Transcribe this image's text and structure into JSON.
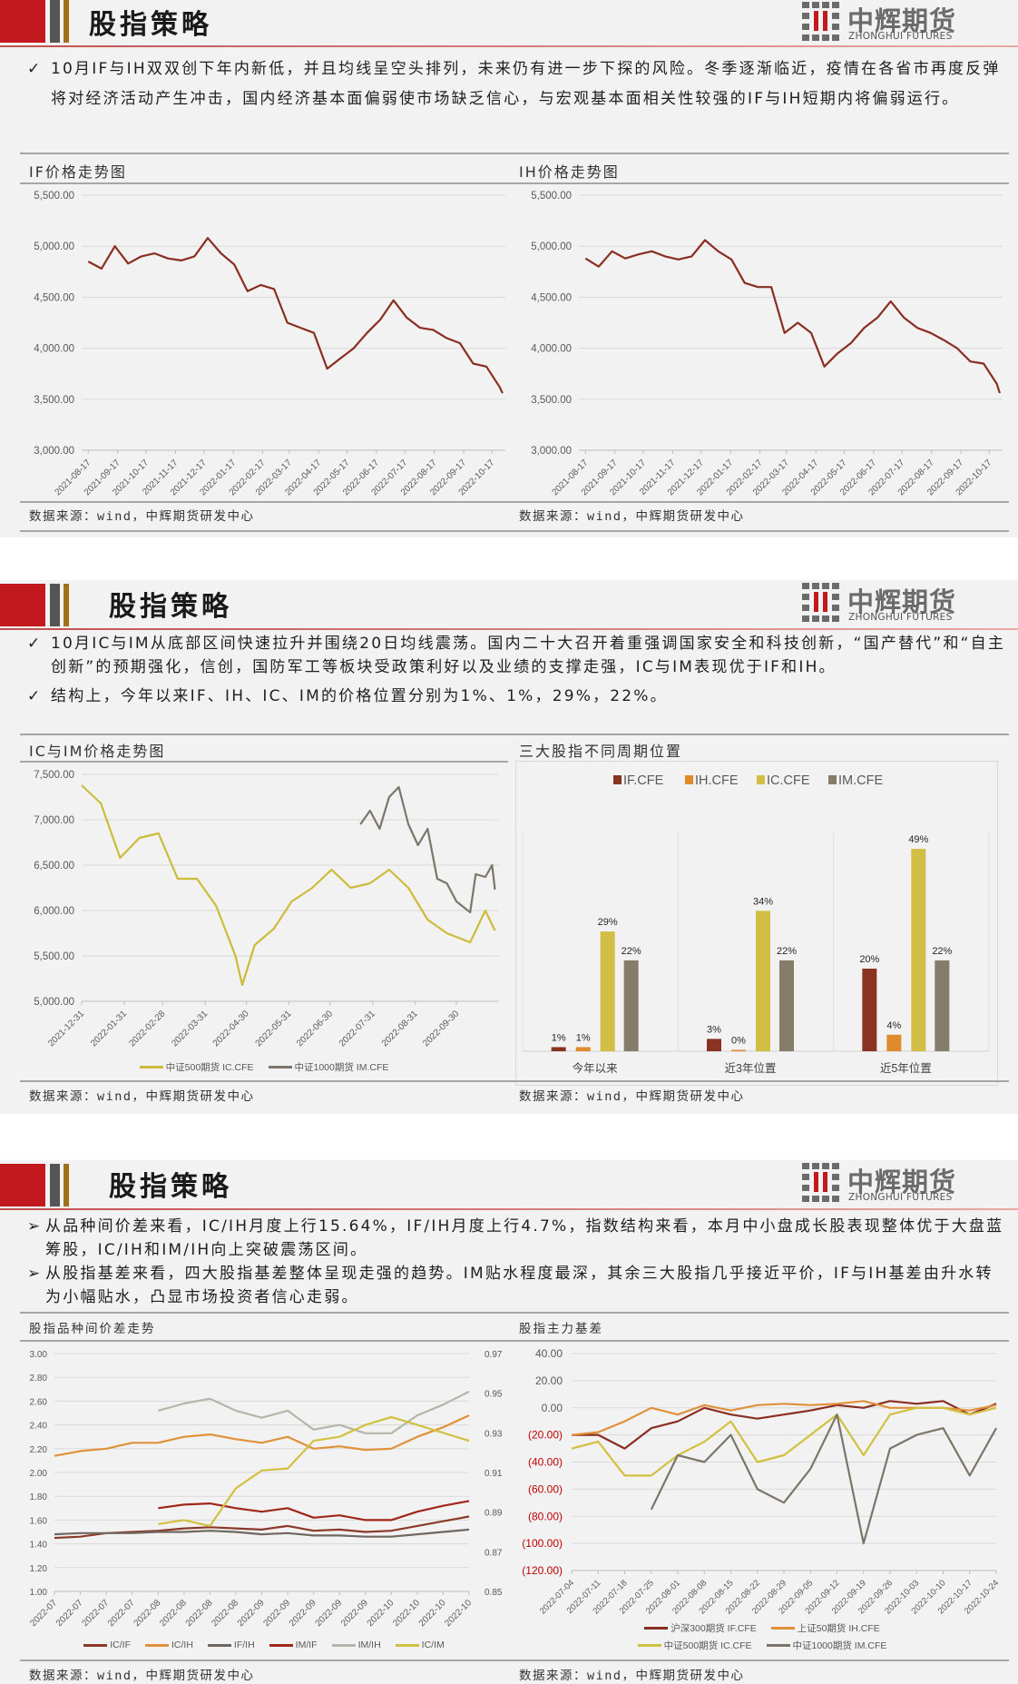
{
  "header": {
    "title": "股指策略",
    "logo": {
      "cn": "中辉期货",
      "en": "ZHONGHUI FUTURES"
    }
  },
  "colors": {
    "brand_red": "#c2191f",
    "brand_gray": "#555555",
    "brand_gold": "#a0701a"
  },
  "source_label": "数据来源：wind，中辉期货研发中心",
  "section1": {
    "bullet_icon": "check-icon",
    "bullets": [
      "10月IF与IH双双创下年内新低，并且均线呈空头排列，未来仍有进一步下探的风险。冬季逐渐临近，疫情在各省市再度反弹将对经济活动产生冲击，国内经济基本面偏弱使市场缺乏信心，与宏观基本面相关性较强的IF与IH短期内将偏弱运行。"
    ]
  },
  "section2": {
    "bullet_icon": "check-icon",
    "bullets": [
      "10月IC与IM从底部区间快速拉升并围绕20日均线震荡。国内二十大召开着重强调国家安全和科技创新，“国产替代”和“自主创新”的预期强化，信创，国防军工等板块受政策利好以及业绩的支撑走强，IC与IM表现优于IF和IH。",
      "结构上，今年以来IF、IH、IC、IM的价格位置分别为1%、1%，29%，22%。"
    ]
  },
  "section3": {
    "bullet_icon": "triangle-right-icon",
    "bullets": [
      "从品种间价差来看，IC/IH月度上行15.64%，IF/IH月度上行4.7%，指数结构来看，本月中小盘成长股表现整体优于大盘蓝筹股，IC/IH和IM/IH向上突破震荡区间。",
      "从股指基差来看，四大股指基差整体呈现走强的趋势。IM贴水程度最深，其余三大股指几乎接近平价，IF与IH基差由升水转为小幅贴水，凸显市场投资者信心走弱。"
    ]
  },
  "chart_data": [
    {
      "type": "line",
      "title": "IF价格走势图",
      "xlim": [
        "2021-08-10",
        "2022-10-31"
      ],
      "ylim": [
        3000,
        5500
      ],
      "y_ticks": [
        3000,
        3500,
        4000,
        4500,
        5000,
        5500
      ],
      "y_decimals": 2,
      "grid": true,
      "x_ticks": [
        "2021-08-17",
        "2021-09-17",
        "2021-10-17",
        "2021-11-17",
        "2021-12-17",
        "2022-01-17",
        "2022-02-17",
        "2022-03-17",
        "2022-04-17",
        "2022-05-17",
        "2022-06-17",
        "2022-07-17",
        "2022-08-17",
        "2022-09-17",
        "2022-10-17"
      ],
      "series": [
        {
          "color": "#8b2e22",
          "dates": [
            "2021-08-17",
            "2021-08-31",
            "2021-09-14",
            "2021-09-28",
            "2021-10-12",
            "2021-10-26",
            "2021-11-09",
            "2021-11-23",
            "2021-12-07",
            "2021-12-21",
            "2022-01-04",
            "2022-01-18",
            "2022-02-01",
            "2022-02-15",
            "2022-03-01",
            "2022-03-15",
            "2022-03-29",
            "2022-04-12",
            "2022-04-26",
            "2022-05-10",
            "2022-05-24",
            "2022-06-07",
            "2022-06-21",
            "2022-07-05",
            "2022-07-19",
            "2022-08-02",
            "2022-08-16",
            "2022-08-30",
            "2022-09-13",
            "2022-09-27",
            "2022-10-11",
            "2022-10-25",
            "2022-10-28"
          ],
          "values": [
            4850,
            4780,
            5000,
            4830,
            4900,
            4930,
            4880,
            4860,
            4900,
            5080,
            4930,
            4820,
            4560,
            4620,
            4580,
            4250,
            4200,
            4150,
            3800,
            3900,
            4000,
            4150,
            4280,
            4470,
            4300,
            4200,
            4180,
            4100,
            4050,
            3850,
            3820,
            3620,
            3560
          ]
        }
      ]
    },
    {
      "type": "line",
      "title": "IH价格走势图",
      "xlim": [
        "2021-08-10",
        "2022-10-31"
      ],
      "ylim": [
        3000,
        5500
      ],
      "y_ticks": [
        3000,
        3500,
        4000,
        4500,
        5000,
        5500
      ],
      "y_decimals": 2,
      "grid": true,
      "x_ticks": [
        "2021-08-17",
        "2021-09-17",
        "2021-10-17",
        "2021-11-17",
        "2021-12-17",
        "2022-01-17",
        "2022-02-17",
        "2022-03-17",
        "2022-04-17",
        "2022-05-17",
        "2022-06-17",
        "2022-07-17",
        "2022-08-17",
        "2022-09-17",
        "2022-10-17"
      ],
      "series": [
        {
          "color": "#8b2e22",
          "dates": [
            "2021-08-17",
            "2021-08-31",
            "2021-09-14",
            "2021-09-28",
            "2021-10-12",
            "2021-10-26",
            "2021-11-09",
            "2021-11-23",
            "2021-12-07",
            "2021-12-21",
            "2022-01-04",
            "2022-01-18",
            "2022-02-01",
            "2022-02-15",
            "2022-03-01",
            "2022-03-15",
            "2022-03-29",
            "2022-04-12",
            "2022-04-26",
            "2022-05-10",
            "2022-05-24",
            "2022-06-07",
            "2022-06-21",
            "2022-07-05",
            "2022-07-19",
            "2022-08-02",
            "2022-08-16",
            "2022-08-30",
            "2022-09-13",
            "2022-09-27",
            "2022-10-11",
            "2022-10-25",
            "2022-10-28"
          ],
          "values": [
            4880,
            4800,
            4950,
            4880,
            4920,
            4950,
            4900,
            4870,
            4900,
            5060,
            4950,
            4870,
            4640,
            4600,
            4600,
            4150,
            4250,
            4150,
            3820,
            3950,
            4050,
            4200,
            4300,
            4460,
            4300,
            4200,
            4150,
            4080,
            4000,
            3870,
            3850,
            3650,
            3560
          ]
        }
      ]
    },
    {
      "type": "line",
      "title": "IC与IM价格走势图",
      "xlim": [
        "2021-12-31",
        "2022-10-31"
      ],
      "ylim": [
        5000,
        7500
      ],
      "y_ticks": [
        5000,
        5500,
        6000,
        6500,
        7000,
        7500
      ],
      "y_decimals": 2,
      "grid": true,
      "legend": "bottom",
      "x_ticks": [
        "2021-12-31",
        "2022-01-31",
        "2022-02-28",
        "2022-03-31",
        "2022-04-30",
        "2022-05-31",
        "2022-06-30",
        "2022-07-31",
        "2022-08-31",
        "2022-09-30"
      ],
      "series": [
        {
          "name": "中证500期货 IC.CFE",
          "color": "#cdbb3c",
          "dates": [
            "2021-12-31",
            "2022-01-14",
            "2022-01-28",
            "2022-02-11",
            "2022-02-25",
            "2022-03-11",
            "2022-03-25",
            "2022-04-08",
            "2022-04-22",
            "2022-04-27",
            "2022-05-06",
            "2022-05-20",
            "2022-06-02",
            "2022-06-17",
            "2022-07-01",
            "2022-07-15",
            "2022-07-29",
            "2022-08-12",
            "2022-08-26",
            "2022-09-09",
            "2022-09-23",
            "2022-10-10",
            "2022-10-21",
            "2022-10-28"
          ],
          "values": [
            7380,
            7180,
            6580,
            6800,
            6850,
            6350,
            6350,
            6050,
            5500,
            5180,
            5620,
            5800,
            6100,
            6250,
            6450,
            6250,
            6300,
            6450,
            6250,
            5900,
            5750,
            5650,
            6000,
            5780
          ]
        },
        {
          "name": "中证1000期货 IM.CFE",
          "color": "#7c766a",
          "dates": [
            "2022-07-22",
            "2022-07-29",
            "2022-08-05",
            "2022-08-12",
            "2022-08-19",
            "2022-08-26",
            "2022-09-02",
            "2022-09-09",
            "2022-09-16",
            "2022-09-23",
            "2022-09-30",
            "2022-10-10",
            "2022-10-14",
            "2022-10-21",
            "2022-10-26",
            "2022-10-28"
          ],
          "values": [
            6950,
            7100,
            6900,
            7250,
            7360,
            6950,
            6720,
            6900,
            6350,
            6300,
            6100,
            5980,
            6400,
            6370,
            6500,
            6230
          ]
        }
      ]
    },
    {
      "type": "bar",
      "title": "三大股指不同周期位置",
      "legend": "top",
      "ylim": [
        0,
        60
      ],
      "grid": false,
      "categories": [
        "今年以来",
        "近3年位置",
        "近5年位置"
      ],
      "series": [
        {
          "name": "IF.CFE",
          "color": "#8b3323",
          "values": [
            1,
            3,
            20
          ]
        },
        {
          "name": "IH.CFE",
          "color": "#e08a2e",
          "values": [
            1,
            0,
            4
          ]
        },
        {
          "name": "IC.CFE",
          "color": "#d2bd45",
          "values": [
            29,
            34,
            49
          ]
        },
        {
          "name": "IM.CFE",
          "color": "#857c6a",
          "values": [
            22,
            22,
            22
          ]
        }
      ],
      "value_suffix": "%"
    },
    {
      "type": "line",
      "title": "股指品种间价差走势",
      "ylim": [
        1.0,
        3.0
      ],
      "y2lim": [
        0.85,
        0.97
      ],
      "y_ticks": [
        1.0,
        1.2,
        1.4,
        1.6,
        1.8,
        2.0,
        2.2,
        2.4,
        2.6,
        2.8,
        3.0
      ],
      "y2_ticks": [
        0.85,
        0.87,
        0.89,
        0.91,
        0.93,
        0.95,
        0.97
      ],
      "y_decimals": 2,
      "grid": true,
      "legend": "bottom",
      "x_ticks": [
        "2022-07",
        "2022-07",
        "2022-07",
        "2022-07",
        "2022-08",
        "2022-08",
        "2022-08",
        "2022-08",
        "2022-09",
        "2022-09",
        "2022-09",
        "2022-09",
        "2022-09",
        "2022-10",
        "2022-10",
        "2022-10",
        "2022-10"
      ],
      "series": [
        {
          "name": "IC/IF",
          "color": "#8b3a2a",
          "axis": "left",
          "values": [
            1.45,
            1.46,
            1.49,
            1.5,
            1.51,
            1.53,
            1.54,
            1.53,
            1.52,
            1.55,
            1.51,
            1.52,
            1.5,
            1.51,
            1.55,
            1.59,
            1.63
          ]
        },
        {
          "name": "IC/IH",
          "color": "#e0913a",
          "axis": "left",
          "values": [
            2.14,
            2.18,
            2.2,
            2.25,
            2.25,
            2.3,
            2.32,
            2.28,
            2.25,
            2.3,
            2.2,
            2.22,
            2.19,
            2.2,
            2.3,
            2.38,
            2.48
          ]
        },
        {
          "name": "IF/IH",
          "color": "#706860",
          "axis": "left",
          "values": [
            1.48,
            1.49,
            1.49,
            1.49,
            1.5,
            1.5,
            1.51,
            1.5,
            1.48,
            1.49,
            1.47,
            1.47,
            1.46,
            1.46,
            1.48,
            1.5,
            1.52
          ]
        },
        {
          "name": "IM/IF",
          "color": "#a0261a",
          "axis": "left",
          "values": [
            null,
            null,
            null,
            null,
            1.7,
            1.73,
            1.74,
            1.7,
            1.67,
            1.7,
            1.62,
            1.64,
            1.6,
            1.6,
            1.67,
            1.72,
            1.76
          ]
        },
        {
          "name": "IM/IH",
          "color": "#b5b5a8",
          "axis": "left",
          "values": [
            null,
            null,
            null,
            null,
            2.52,
            2.58,
            2.62,
            2.52,
            2.46,
            2.52,
            2.36,
            2.4,
            2.33,
            2.33,
            2.48,
            2.57,
            2.68
          ]
        },
        {
          "name": "IC/IM",
          "color": "#d2c040",
          "axis": "right",
          "values": [
            null,
            null,
            null,
            null,
            0.884,
            0.886,
            0.883,
            0.902,
            0.911,
            0.912,
            0.926,
            0.928,
            0.934,
            0.938,
            0.934,
            0.93,
            0.926
          ]
        }
      ]
    },
    {
      "type": "line",
      "title": "股指主力基差",
      "ylim": [
        -120,
        40
      ],
      "y_ticks": [
        -120,
        -100,
        -80,
        -60,
        -40,
        -20,
        0,
        20,
        40
      ],
      "y_decimals": 2,
      "negative_format": "parentheses",
      "negative_color": "#c00000",
      "grid": true,
      "legend": "bottom",
      "x_ticks": [
        "2022-07-04",
        "2022-07-11",
        "2022-07-18",
        "2022-07-25",
        "2022-08-01",
        "2022-08-08",
        "2022-08-15",
        "2022-08-22",
        "2022-08-29",
        "2022-09-05",
        "2022-09-12",
        "2022-09-19",
        "2022-09-26",
        "2022-10-03",
        "2022-10-10",
        "2022-10-17",
        "2022-10-24"
      ],
      "series": [
        {
          "name": "沪深300期货 IF.CFE",
          "color": "#8b2e22",
          "values": [
            -20,
            -20,
            -30,
            -15,
            -10,
            0,
            -5,
            -8,
            -5,
            -2,
            2,
            0,
            5,
            3,
            5,
            -5,
            3
          ]
        },
        {
          "name": "上证50期货 IH.CFE",
          "color": "#e0913a",
          "values": [
            -20,
            -18,
            -10,
            0,
            -5,
            2,
            -2,
            2,
            3,
            2,
            3,
            5,
            0,
            0,
            0,
            -2,
            2
          ]
        },
        {
          "name": "中证500期货 IC.CFE",
          "color": "#d2c040",
          "values": [
            -30,
            -25,
            -50,
            -50,
            -35,
            -25,
            -10,
            -40,
            -35,
            -20,
            -5,
            -35,
            -5,
            0,
            0,
            -5,
            0
          ]
        },
        {
          "name": "中证1000期货 IM.CFE",
          "color": "#7c766a",
          "values": [
            null,
            null,
            null,
            -75,
            -35,
            -40,
            -20,
            -60,
            -70,
            -45,
            -5,
            -100,
            -30,
            -20,
            -15,
            -50,
            -15
          ]
        }
      ]
    }
  ]
}
